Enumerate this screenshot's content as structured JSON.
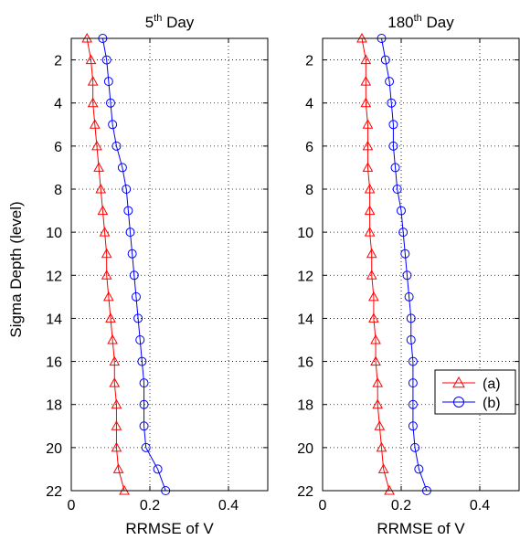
{
  "chart_data": {
    "type": "line",
    "ylabel": "Sigma Depth (level)",
    "xlim": [
      0,
      0.5
    ],
    "ylim": [
      22,
      1
    ],
    "y_reversed": true,
    "grid": true,
    "xticks": [
      0,
      0.2,
      0.4
    ],
    "yticks": [
      2,
      4,
      6,
      8,
      10,
      12,
      14,
      16,
      18,
      20,
      22
    ],
    "legend": {
      "placement": "lower-right",
      "panel": 1
    },
    "depth_levels": [
      1,
      2,
      3,
      4,
      5,
      6,
      7,
      8,
      9,
      10,
      11,
      12,
      13,
      14,
      15,
      16,
      17,
      18,
      19,
      20,
      21,
      22
    ],
    "series_meta": [
      {
        "name": "(a)",
        "color": "#ff0000",
        "marker": "triangle"
      },
      {
        "name": "(b)",
        "color": "#0000ff",
        "marker": "circle"
      }
    ],
    "panels": [
      {
        "title_base": "5",
        "title_sup": "th",
        "title_rest": " Day",
        "xlabel": "RRMSE of V",
        "series": [
          {
            "name": "(a)",
            "values": [
              0.04,
              0.05,
              0.055,
              0.055,
              0.06,
              0.065,
              0.07,
              0.075,
              0.08,
              0.085,
              0.09,
              0.09,
              0.095,
              0.1,
              0.105,
              0.11,
              0.11,
              0.115,
              0.115,
              0.115,
              0.12,
              0.135
            ]
          },
          {
            "name": "(b)",
            "values": [
              0.08,
              0.09,
              0.095,
              0.1,
              0.105,
              0.115,
              0.13,
              0.14,
              0.145,
              0.15,
              0.155,
              0.16,
              0.165,
              0.17,
              0.175,
              0.18,
              0.185,
              0.185,
              0.185,
              0.19,
              0.22,
              0.24
            ]
          }
        ]
      },
      {
        "title_base": "180",
        "title_sup": "th",
        "title_rest": " Day",
        "xlabel": "RRMSE of V",
        "series": [
          {
            "name": "(a)",
            "values": [
              0.1,
              0.11,
              0.11,
              0.11,
              0.115,
              0.115,
              0.115,
              0.12,
              0.12,
              0.12,
              0.125,
              0.125,
              0.13,
              0.13,
              0.135,
              0.135,
              0.14,
              0.14,
              0.145,
              0.15,
              0.155,
              0.17
            ]
          },
          {
            "name": "(b)",
            "values": [
              0.15,
              0.16,
              0.17,
              0.175,
              0.18,
              0.18,
              0.185,
              0.19,
              0.2,
              0.205,
              0.21,
              0.215,
              0.22,
              0.225,
              0.225,
              0.23,
              0.23,
              0.23,
              0.23,
              0.235,
              0.245,
              0.265
            ]
          }
        ]
      }
    ]
  }
}
